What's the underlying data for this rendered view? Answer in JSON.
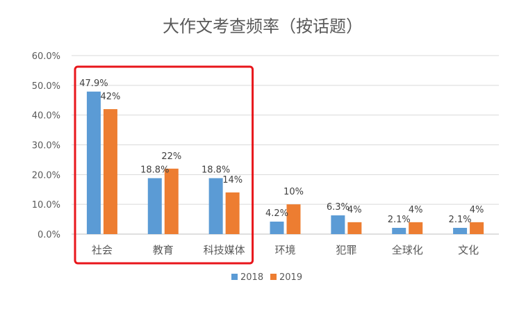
{
  "chart_data": {
    "type": "bar",
    "title": "大作文考查频率（按话题）",
    "xlabel": "",
    "ylabel": "",
    "ylim": [
      0,
      60
    ],
    "yticks": [
      "60.0%",
      "50.0%",
      "40.0%",
      "30.0%",
      "20.0%",
      "10.0%",
      "0.0%"
    ],
    "categories": [
      "社会",
      "教育",
      "科技媒体",
      "环境",
      "犯罪",
      "全球化",
      "文化"
    ],
    "series": [
      {
        "name": "2018",
        "color": "#5B9BD5",
        "values": [
          47.9,
          18.8,
          18.8,
          4.2,
          6.3,
          2.1,
          2.1
        ],
        "labels": [
          "47.9%",
          "18.8%",
          "18.8%",
          "4.2%",
          "6.3%",
          "2.1%",
          "2.1%"
        ]
      },
      {
        "name": "2019",
        "color": "#ED7D31",
        "values": [
          42,
          22,
          14,
          10,
          4,
          4,
          4
        ],
        "labels": [
          "42%",
          "22%",
          "14%",
          "10%",
          "4%",
          "4%",
          "4%"
        ]
      }
    ],
    "grid": true,
    "legend": "bottom",
    "highlight": {
      "categories": [
        "社会",
        "教育",
        "科技媒体"
      ],
      "color": "#E8161B"
    }
  }
}
